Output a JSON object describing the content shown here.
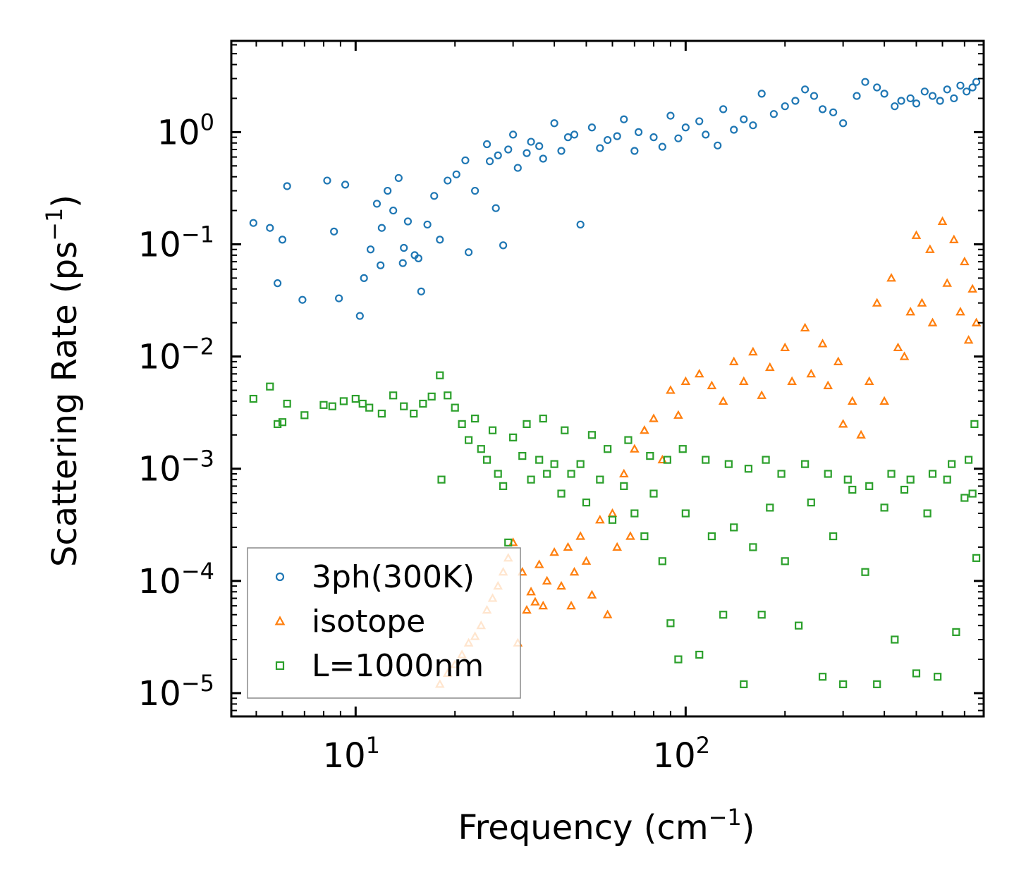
{
  "chart_data": {
    "type": "scatter",
    "title": "",
    "xlabel": "Frequency (cm",
    "xlabel_sup": "−1",
    "xlabel_end": ")",
    "ylabel": "Scattering Rate (ps",
    "ylabel_sup": "−1",
    "ylabel_end": ")",
    "xscale": "log",
    "yscale": "log",
    "xlim": [
      4.2,
      800
    ],
    "ylim": [
      6.2e-06,
      6.5
    ],
    "x_tick_labels": [
      {
        "value": 10,
        "base": "10",
        "exp": "1"
      },
      {
        "value": 100,
        "base": "10",
        "exp": "2"
      }
    ],
    "y_tick_labels": [
      {
        "value": 1,
        "base": "10",
        "exp": "0"
      },
      {
        "value": 0.1,
        "base": "10",
        "exp": "−1"
      },
      {
        "value": 0.01,
        "base": "10",
        "exp": "−2"
      },
      {
        "value": 0.001,
        "base": "10",
        "exp": "−3"
      },
      {
        "value": 0.0001,
        "base": "10",
        "exp": "−4"
      },
      {
        "value": 1e-05,
        "base": "10",
        "exp": "−5"
      }
    ],
    "legend_position": "lower-left",
    "series": [
      {
        "name": "3ph(300K)",
        "marker": "circle",
        "color": "#1f77b4",
        "points": [
          [
            4.9,
            0.155
          ],
          [
            5.5,
            0.14
          ],
          [
            5.8,
            0.045
          ],
          [
            6.0,
            0.11
          ],
          [
            6.2,
            0.33
          ],
          [
            6.9,
            0.032
          ],
          [
            8.2,
            0.37
          ],
          [
            8.6,
            0.13
          ],
          [
            8.9,
            0.033
          ],
          [
            9.3,
            0.34
          ],
          [
            10.3,
            0.023
          ],
          [
            10.6,
            0.05
          ],
          [
            11.1,
            0.09
          ],
          [
            11.6,
            0.23
          ],
          [
            11.9,
            0.065
          ],
          [
            12.0,
            0.14
          ],
          [
            12.5,
            0.3
          ],
          [
            13.0,
            0.2
          ],
          [
            13.5,
            0.39
          ],
          [
            13.9,
            0.068
          ],
          [
            14.0,
            0.093
          ],
          [
            14.4,
            0.16
          ],
          [
            15.1,
            0.08
          ],
          [
            15.5,
            0.075
          ],
          [
            15.8,
            0.038
          ],
          [
            16.5,
            0.15
          ],
          [
            17.3,
            0.27
          ],
          [
            18.0,
            0.11
          ],
          [
            19.0,
            0.37
          ],
          [
            20.2,
            0.42
          ],
          [
            21.5,
            0.56
          ],
          [
            22.0,
            0.085
          ],
          [
            23.0,
            0.3
          ],
          [
            25.0,
            0.78
          ],
          [
            26.6,
            0.21
          ],
          [
            28.0,
            0.098
          ],
          [
            30.0,
            0.95
          ],
          [
            33.0,
            0.65
          ],
          [
            36.0,
            0.75
          ],
          [
            40.0,
            1.2
          ],
          [
            44.0,
            0.9
          ],
          [
            48.0,
            0.15
          ],
          [
            52.0,
            1.1
          ],
          [
            58.0,
            0.85
          ],
          [
            65.0,
            1.3
          ],
          [
            72.0,
            1.0
          ],
          [
            80.0,
            0.9
          ],
          [
            90.0,
            1.4
          ],
          [
            100.0,
            1.1
          ],
          [
            115.0,
            0.95
          ],
          [
            130.0,
            1.6
          ],
          [
            150.0,
            1.3
          ],
          [
            170.0,
            2.2
          ],
          [
            200.0,
            1.7
          ],
          [
            230.0,
            2.4
          ],
          [
            260.0,
            1.6
          ],
          [
            300.0,
            1.2
          ],
          [
            350.0,
            2.8
          ],
          [
            400.0,
            2.2
          ],
          [
            450.0,
            1.9
          ],
          [
            500.0,
            1.8
          ],
          [
            560.0,
            2.1
          ],
          [
            620.0,
            2.4
          ],
          [
            680.0,
            2.6
          ],
          [
            740.0,
            2.5
          ],
          [
            25.5,
            0.55
          ],
          [
            27.0,
            0.62
          ],
          [
            29.0,
            0.7
          ],
          [
            31.0,
            0.48
          ],
          [
            34.0,
            0.82
          ],
          [
            37.0,
            0.58
          ],
          [
            42.0,
            0.68
          ],
          [
            46.0,
            0.95
          ],
          [
            55.0,
            0.72
          ],
          [
            62.0,
            0.92
          ],
          [
            70.0,
            0.68
          ],
          [
            85.0,
            0.74
          ],
          [
            95.0,
            0.88
          ],
          [
            110.0,
            1.25
          ],
          [
            125.0,
            0.76
          ],
          [
            140.0,
            1.05
          ],
          [
            160.0,
            1.15
          ],
          [
            185.0,
            1.45
          ],
          [
            215.0,
            1.9
          ],
          [
            245.0,
            2.1
          ],
          [
            280.0,
            1.5
          ],
          [
            330.0,
            2.1
          ],
          [
            380.0,
            2.5
          ],
          [
            430.0,
            1.7
          ],
          [
            480.0,
            2.0
          ],
          [
            530.0,
            2.3
          ],
          [
            590.0,
            1.9
          ],
          [
            650.0,
            2.0
          ],
          [
            710.0,
            2.3
          ],
          [
            760.0,
            2.8
          ]
        ]
      },
      {
        "name": "isotope",
        "marker": "triangle",
        "color": "#ff7f0e",
        "points": [
          [
            18.0,
            1.2e-05
          ],
          [
            19.0,
            1.5e-05
          ],
          [
            20.0,
            1.8e-05
          ],
          [
            21.0,
            2.2e-05
          ],
          [
            22.0,
            2.8e-05
          ],
          [
            23.0,
            3.2e-05
          ],
          [
            24.0,
            4e-05
          ],
          [
            25.0,
            5.5e-05
          ],
          [
            26.0,
            7e-05
          ],
          [
            27.0,
            9e-05
          ],
          [
            28.0,
            0.00012
          ],
          [
            29.0,
            0.00016
          ],
          [
            30.0,
            0.00022
          ],
          [
            32.0,
            0.00012
          ],
          [
            34.0,
            8e-05
          ],
          [
            36.0,
            0.00014
          ],
          [
            38.0,
            0.0001
          ],
          [
            40.0,
            0.00018
          ],
          [
            42.0,
            9e-05
          ],
          [
            44.0,
            0.0002
          ],
          [
            46.0,
            0.00012
          ],
          [
            48.0,
            0.00025
          ],
          [
            50.0,
            0.00015
          ],
          [
            55.0,
            0.00035
          ],
          [
            60.0,
            0.0004
          ],
          [
            65.0,
            0.0009
          ],
          [
            70.0,
            0.0015
          ],
          [
            75.0,
            0.0022
          ],
          [
            80.0,
            0.0028
          ],
          [
            90.0,
            0.005
          ],
          [
            100.0,
            0.006
          ],
          [
            110.0,
            0.007
          ],
          [
            120.0,
            0.0055
          ],
          [
            140.0,
            0.009
          ],
          [
            160.0,
            0.011
          ],
          [
            180.0,
            0.008
          ],
          [
            200.0,
            0.012
          ],
          [
            230.0,
            0.018
          ],
          [
            260.0,
            0.013
          ],
          [
            290.0,
            0.009
          ],
          [
            320.0,
            0.004
          ],
          [
            380.0,
            0.03
          ],
          [
            420.0,
            0.05
          ],
          [
            460.0,
            0.01
          ],
          [
            500.0,
            0.12
          ],
          [
            550.0,
            0.09
          ],
          [
            600.0,
            0.16
          ],
          [
            650.0,
            0.11
          ],
          [
            700.0,
            0.07
          ],
          [
            740.0,
            0.04
          ],
          [
            31.0,
            2.8e-05
          ],
          [
            33.0,
            5.5e-05
          ],
          [
            35.0,
            6.5e-05
          ],
          [
            37.0,
            6e-05
          ],
          [
            45.0,
            6e-05
          ],
          [
            52.0,
            7.5e-05
          ],
          [
            58.0,
            5e-05
          ],
          [
            62.0,
            0.0002
          ],
          [
            68.0,
            0.00025
          ],
          [
            85.0,
            0.0012
          ],
          [
            95.0,
            0.003
          ],
          [
            130.0,
            0.004
          ],
          [
            150.0,
            0.006
          ],
          [
            170.0,
            0.0045
          ],
          [
            210.0,
            0.006
          ],
          [
            240.0,
            0.007
          ],
          [
            270.0,
            0.0055
          ],
          [
            300.0,
            0.0025
          ],
          [
            340.0,
            0.002
          ],
          [
            360.0,
            0.006
          ],
          [
            400.0,
            0.004
          ],
          [
            440.0,
            0.012
          ],
          [
            480.0,
            0.025
          ],
          [
            520.0,
            0.03
          ],
          [
            560.0,
            0.02
          ],
          [
            620.0,
            0.045
          ],
          [
            680.0,
            0.025
          ],
          [
            720.0,
            0.014
          ],
          [
            760.0,
            0.02
          ]
        ]
      },
      {
        "name": "L=1000nm",
        "marker": "square",
        "color": "#2ca02c",
        "points": [
          [
            4.9,
            0.0042
          ],
          [
            5.5,
            0.0054
          ],
          [
            5.8,
            0.0025
          ],
          [
            6.0,
            0.0026
          ],
          [
            6.2,
            0.0038
          ],
          [
            7.0,
            0.003
          ],
          [
            8.0,
            0.0037
          ],
          [
            8.5,
            0.0036
          ],
          [
            9.2,
            0.004
          ],
          [
            10.0,
            0.0042
          ],
          [
            10.5,
            0.0038
          ],
          [
            11.0,
            0.0035
          ],
          [
            12.0,
            0.0031
          ],
          [
            13.0,
            0.0045
          ],
          [
            14.0,
            0.0036
          ],
          [
            15.0,
            0.0031
          ],
          [
            16.0,
            0.0038
          ],
          [
            17.0,
            0.0044
          ],
          [
            18.0,
            0.0068
          ],
          [
            18.2,
            0.0008
          ],
          [
            19.0,
            0.0045
          ],
          [
            20.0,
            0.0035
          ],
          [
            21.0,
            0.0025
          ],
          [
            22.0,
            0.0018
          ],
          [
            23.0,
            0.0028
          ],
          [
            24.0,
            0.0015
          ],
          [
            25.0,
            0.0012
          ],
          [
            26.0,
            0.0022
          ],
          [
            27.0,
            0.0009
          ],
          [
            28.0,
            0.0007
          ],
          [
            29.0,
            0.00022
          ],
          [
            30.0,
            0.0019
          ],
          [
            32.0,
            0.0013
          ],
          [
            34.0,
            0.0008
          ],
          [
            36.0,
            0.0012
          ],
          [
            38.0,
            0.0009
          ],
          [
            40.0,
            0.0011
          ],
          [
            42.0,
            0.0006
          ],
          [
            45.0,
            0.0009
          ],
          [
            48.0,
            0.0011
          ],
          [
            50.0,
            0.0005
          ],
          [
            55.0,
            0.0008
          ],
          [
            60.0,
            0.00035
          ],
          [
            65.0,
            0.0007
          ],
          [
            70.0,
            0.0004
          ],
          [
            75.0,
            0.00025
          ],
          [
            80.0,
            0.0006
          ],
          [
            85.0,
            0.00015
          ],
          [
            90.0,
            4.2e-05
          ],
          [
            95.0,
            2e-05
          ],
          [
            100.0,
            0.0004
          ],
          [
            110.0,
            2.2e-05
          ],
          [
            120.0,
            0.00025
          ],
          [
            130.0,
            5e-05
          ],
          [
            140.0,
            0.0003
          ],
          [
            150.0,
            1.2e-05
          ],
          [
            160.0,
            0.0002
          ],
          [
            170.0,
            5e-05
          ],
          [
            180.0,
            0.00045
          ],
          [
            200.0,
            0.00015
          ],
          [
            220.0,
            4e-05
          ],
          [
            240.0,
            0.0005
          ],
          [
            260.0,
            1.4e-05
          ],
          [
            280.0,
            0.00025
          ],
          [
            300.0,
            1.2e-05
          ],
          [
            320.0,
            0.00065
          ],
          [
            350.0,
            0.00012
          ],
          [
            380.0,
            1.2e-05
          ],
          [
            400.0,
            0.00045
          ],
          [
            430.0,
            3e-05
          ],
          [
            460.0,
            0.00065
          ],
          [
            500.0,
            1.5e-05
          ],
          [
            540.0,
            0.0004
          ],
          [
            580.0,
            1.4e-05
          ],
          [
            620.0,
            0.0008
          ],
          [
            660.0,
            3.5e-05
          ],
          [
            700.0,
            0.00055
          ],
          [
            740.0,
            0.0006
          ],
          [
            760.0,
            0.00016
          ],
          [
            33.0,
            0.0025
          ],
          [
            37.0,
            0.0028
          ],
          [
            43.0,
            0.0022
          ],
          [
            52.0,
            0.002
          ],
          [
            58.0,
            0.0015
          ],
          [
            67.0,
            0.0018
          ],
          [
            78.0,
            0.0013
          ],
          [
            88.0,
            0.0012
          ],
          [
            98.0,
            0.0015
          ],
          [
            115.0,
            0.0012
          ],
          [
            135.0,
            0.0011
          ],
          [
            155.0,
            0.001
          ],
          [
            175.0,
            0.0012
          ],
          [
            195.0,
            0.0009
          ],
          [
            230.0,
            0.0011
          ],
          [
            270.0,
            0.0009
          ],
          [
            310.0,
            0.0008
          ],
          [
            360.0,
            0.0007
          ],
          [
            420.0,
            0.0009
          ],
          [
            480.0,
            0.0008
          ],
          [
            560.0,
            0.0009
          ],
          [
            640.0,
            0.0011
          ],
          [
            720.0,
            0.0012
          ],
          [
            750.0,
            0.0025
          ]
        ]
      }
    ]
  }
}
